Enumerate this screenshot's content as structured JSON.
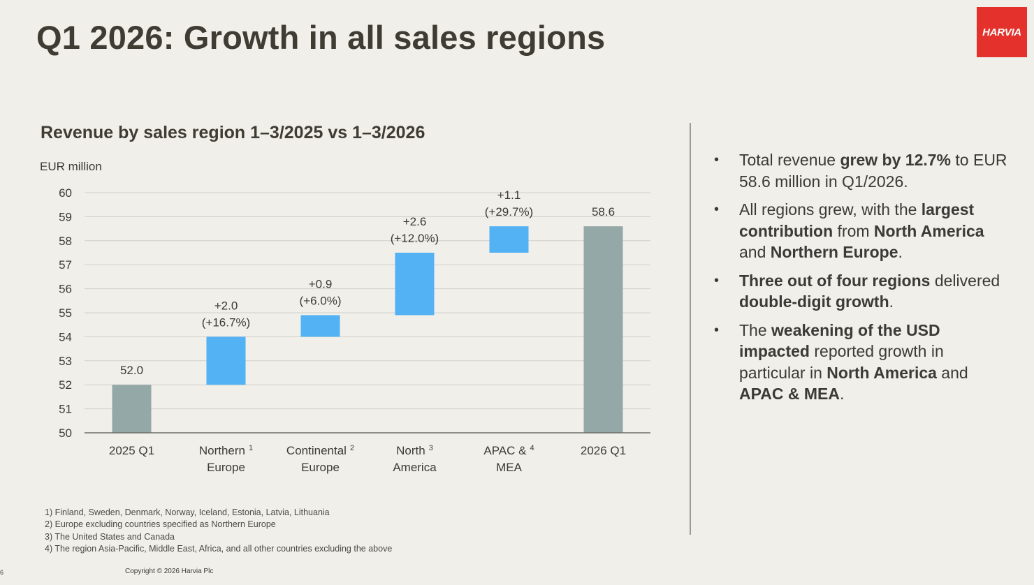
{
  "slide": {
    "title": "Q1 2026: Growth in all sales regions",
    "logo_text": "HARVIA",
    "copyright": "Copyright © 2026 Harvia Plc",
    "page_number": "6"
  },
  "colors": {
    "base": "#94a8a8",
    "increase": "#52b2f4",
    "logo": "#e4312b",
    "grid": "#cfcfcb"
  },
  "chart_data": {
    "type": "waterfall",
    "title": "Revenue by sales region 1–3/2025 vs 1–3/2026",
    "ylabel": "EUR million",
    "ylim": [
      50,
      60
    ],
    "yticks": [
      "50",
      "51",
      "52",
      "53",
      "54",
      "55",
      "56",
      "57",
      "58",
      "59",
      "60"
    ],
    "grid": true,
    "categories": [
      {
        "line1": "2025 Q1",
        "line2": "",
        "sup": ""
      },
      {
        "line1": "Northern",
        "line2": "Europe",
        "sup": "1"
      },
      {
        "line1": "Continental",
        "line2": "Europe",
        "sup": "2"
      },
      {
        "line1": "North",
        "line2": "America",
        "sup": "3"
      },
      {
        "line1": "APAC &",
        "line2": "MEA",
        "sup": "4"
      },
      {
        "line1": "2026 Q1",
        "line2": "",
        "sup": ""
      }
    ],
    "bars": [
      {
        "kind": "total",
        "start": 50,
        "end": 52.0,
        "label1": "52.0",
        "label2": ""
      },
      {
        "kind": "increase",
        "start": 52.0,
        "end": 54.0,
        "label1": "+2.0",
        "label2": "(+16.7%)"
      },
      {
        "kind": "increase",
        "start": 54.0,
        "end": 54.9,
        "label1": "+0.9",
        "label2": "(+6.0%)"
      },
      {
        "kind": "increase",
        "start": 54.9,
        "end": 57.5,
        "label1": "+2.6",
        "label2": "(+12.0%)"
      },
      {
        "kind": "increase",
        "start": 57.5,
        "end": 58.6,
        "label1": "+1.1",
        "label2": "(+29.7%)"
      },
      {
        "kind": "total",
        "start": 50,
        "end": 58.6,
        "label1": "58.6",
        "label2": ""
      }
    ]
  },
  "bullets": [
    [
      {
        "t": "Total revenue ",
        "b": false
      },
      {
        "t": "grew by 12.7%",
        "b": true
      },
      {
        "t": " to EUR 58.6 million in Q1/2026.",
        "b": false
      }
    ],
    [
      {
        "t": "All regions grew, with the ",
        "b": false
      },
      {
        "t": "largest contribution",
        "b": true
      },
      {
        "t": " from ",
        "b": false
      },
      {
        "t": "North America",
        "b": true
      },
      {
        "t": " and ",
        "b": false
      },
      {
        "t": "Northern Europe",
        "b": true
      },
      {
        "t": ".",
        "b": false
      }
    ],
    [
      {
        "t": "Three out of four regions",
        "b": true
      },
      {
        "t": " delivered ",
        "b": false
      },
      {
        "t": "double-digit growth",
        "b": true
      },
      {
        "t": ".",
        "b": false
      }
    ],
    [
      {
        "t": "The ",
        "b": false
      },
      {
        "t": "weakening of the USD impacted",
        "b": true
      },
      {
        "t": " reported growth in particular in ",
        "b": false
      },
      {
        "t": "North America",
        "b": true
      },
      {
        "t": " and ",
        "b": false
      },
      {
        "t": "APAC & MEA",
        "b": true
      },
      {
        "t": ".",
        "b": false
      }
    ]
  ],
  "footnotes": [
    "1) Finland, Sweden, Denmark, Norway, Iceland, Estonia, Latvia, Lithuania",
    "2) Europe excluding countries specified as Northern Europe",
    "3) The United States and Canada",
    "4) The region Asia-Pacific, Middle East, Africa, and all other countries excluding the above"
  ]
}
